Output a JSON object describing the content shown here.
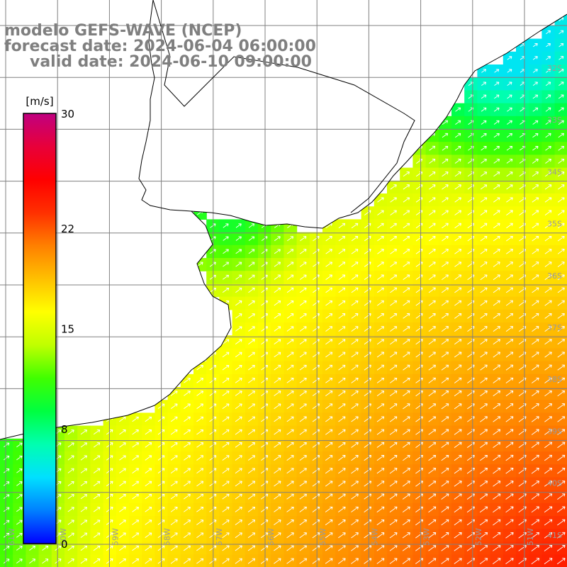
{
  "title": {
    "model": "modelo GEFS-WAVE (NCEP)",
    "forecast": "forecast date: 2024-06-04 06:00:00",
    "valid": "valid date: 2024-06-10 09:00:00"
  },
  "colorbar": {
    "unit": "[m/s]",
    "ticks": [
      "30",
      "22",
      "15",
      "8",
      "0"
    ],
    "range": [
      0,
      30
    ],
    "gradient": [
      "#0000ff",
      "#0080ff",
      "#00e0ff",
      "#00ffb0",
      "#00ff40",
      "#40ff00",
      "#c0ff00",
      "#ffff00",
      "#ffc000",
      "#ff8000",
      "#ff3000",
      "#ff0000",
      "#e8003a",
      "#c00080"
    ]
  },
  "map": {
    "lat_labels": [
      "32S",
      "33S",
      "34S",
      "35S",
      "36S",
      "37S",
      "38S",
      "39S",
      "40S",
      "41S"
    ],
    "lon_labels": [
      "61W",
      "60W",
      "59W",
      "58W",
      "57W",
      "56W",
      "55W",
      "54W",
      "53W",
      "52W",
      "51W"
    ],
    "colors": {
      "land": "#ffffff",
      "grid": "#808080",
      "coast": "#000000",
      "arrow": "#ffffff"
    },
    "wind_direction": "SW to NE"
  }
}
